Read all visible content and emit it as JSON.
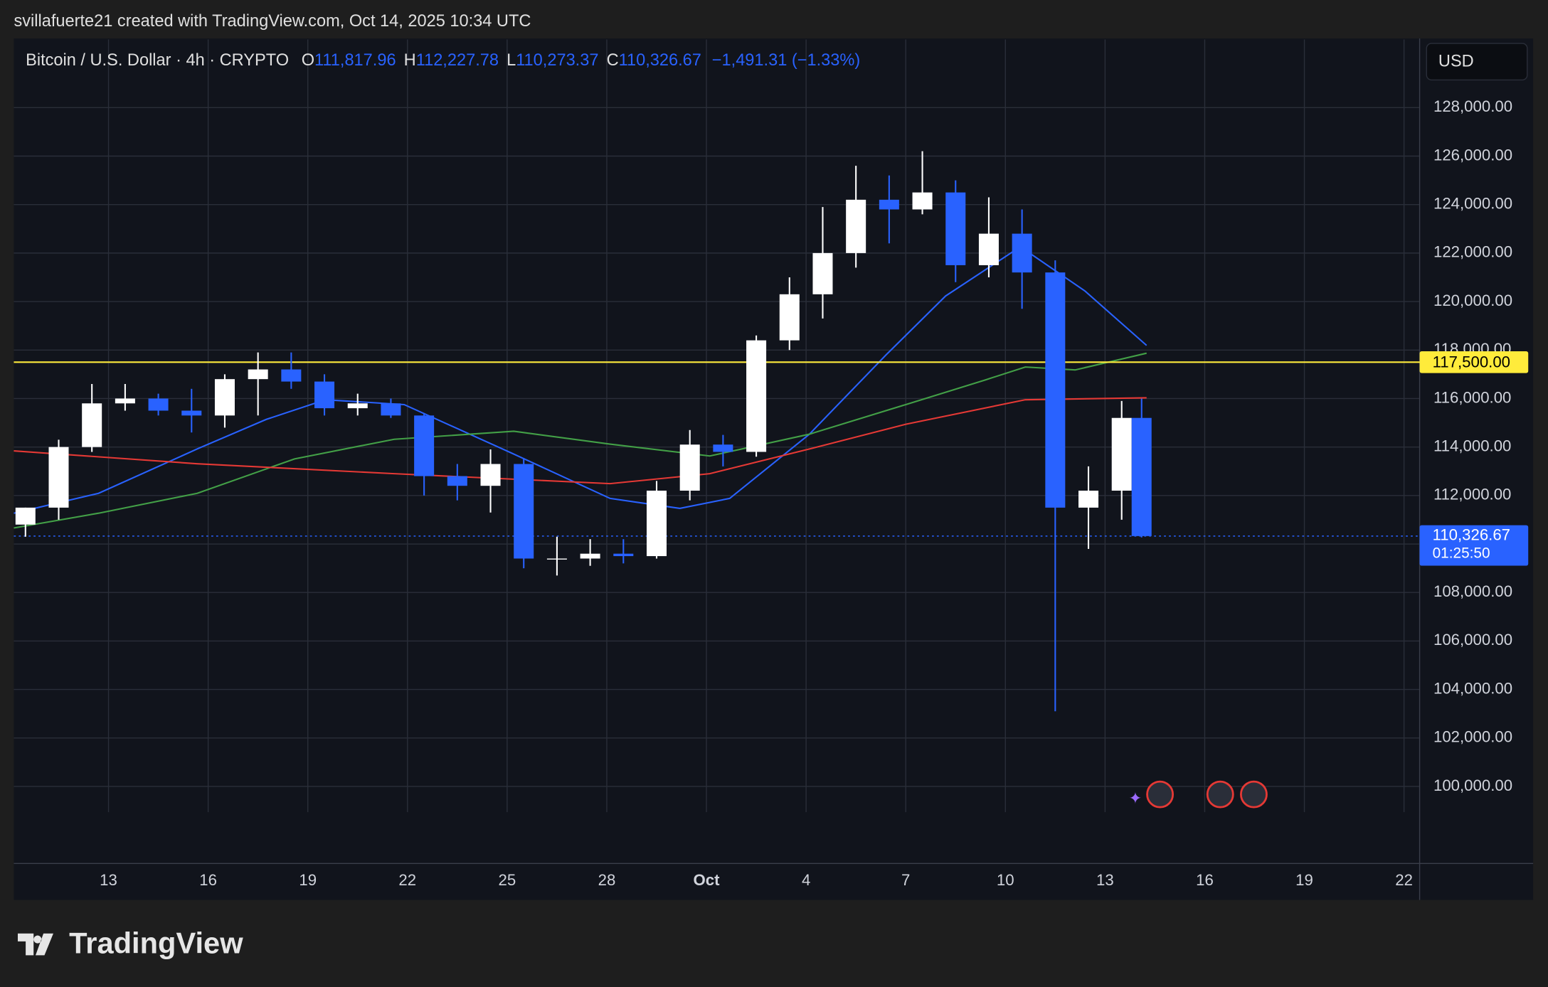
{
  "header": {
    "attribution": "svillafuerte21 created with TradingView.com, Oct 14, 2025 10:34 UTC",
    "symbol": "Bitcoin / U.S. Dollar · 4h · CRYPTO",
    "ohlc": [
      {
        "key": "O",
        "value": "111,817.96"
      },
      {
        "key": "H",
        "value": "112,227.78"
      },
      {
        "key": "L",
        "value": "110,273.37"
      },
      {
        "key": "C",
        "value": "110,326.67"
      }
    ],
    "change": "−1,491.31 (−1.33%)",
    "currency": "USD"
  },
  "chart_data": {
    "type": "candlestick",
    "up_color": "#ffffff",
    "down_color": "#2962ff",
    "grid": true,
    "x": [
      10.5,
      11.5,
      12.5,
      13.5,
      14.5,
      15.5,
      16.5,
      17.5,
      18.5,
      19.5,
      20.5,
      21.5,
      22.5,
      23.5,
      24.5,
      25.5,
      26.5,
      27.5,
      28.5,
      29.5,
      30.5,
      31.5,
      32.5,
      33.5,
      34.5,
      35.5,
      36.5,
      37.5,
      38.5,
      39.5,
      40.5,
      41.5,
      42.5,
      43.5,
      44.1
    ],
    "open": [
      110800,
      111500,
      114000,
      115800,
      116000,
      115500,
      115300,
      116800,
      117200,
      116700,
      115600,
      115800,
      115300,
      112800,
      112400,
      113300,
      109400,
      109400,
      109600,
      109500,
      112200,
      114100,
      113800,
      118400,
      120300,
      122000,
      124200,
      123800,
      124500,
      121500,
      122800,
      121200,
      111500,
      112200,
      115200
    ],
    "high": [
      111500,
      114300,
      116600,
      116600,
      116200,
      116400,
      117000,
      117900,
      117900,
      117000,
      116200,
      116000,
      115400,
      113300,
      113900,
      113500,
      110300,
      110200,
      110200,
      112600,
      114700,
      114500,
      118600,
      121000,
      123900,
      125600,
      125200,
      126200,
      125000,
      124300,
      123800,
      121700,
      113200,
      115900,
      116000
    ],
    "low": [
      110300,
      111000,
      113800,
      115500,
      115300,
      114600,
      114800,
      115300,
      116400,
      115300,
      115300,
      115200,
      112000,
      111800,
      111300,
      109000,
      108700,
      109100,
      109200,
      109400,
      111800,
      113200,
      113600,
      118000,
      119300,
      121400,
      122400,
      123600,
      120800,
      121000,
      119700,
      103100,
      109800,
      111000,
      110273.37
    ],
    "close": [
      111500,
      114000,
      115800,
      116000,
      115500,
      115300,
      116800,
      117200,
      116700,
      115600,
      115800,
      115300,
      112800,
      112400,
      113300,
      109400,
      109400,
      109600,
      109500,
      112200,
      114100,
      113800,
      118400,
      120300,
      122000,
      124200,
      123800,
      124500,
      121500,
      122800,
      121200,
      111500,
      112200,
      115200,
      110326.67
    ],
    "overlays": [
      {
        "color": "#2962ff",
        "x": [
          10.15,
          12.7,
          15.67,
          17.75,
          19.53,
          21.9,
          25.2,
          28.1,
          30.2,
          31.7,
          34.1,
          36.4,
          38.2,
          40.45,
          42.4,
          44.25
        ],
        "values": [
          111270,
          112090,
          113920,
          115140,
          115950,
          115750,
          113710,
          111880,
          111470,
          111880,
          114530,
          117790,
          120230,
          122260,
          120430,
          118190
        ]
      },
      {
        "color": "#43a047",
        "x": [
          10.15,
          12.7,
          15.67,
          18.6,
          21.6,
          25.2,
          28.1,
          31.1,
          34.1,
          37.0,
          39.4,
          40.6,
          42.1,
          44.25
        ],
        "values": [
          110660,
          111270,
          112090,
          113510,
          114320,
          114650,
          114120,
          113630,
          114530,
          115750,
          116770,
          117300,
          117180,
          117870
        ]
      },
      {
        "color": "#e53935",
        "x": [
          10.15,
          15.67,
          21.6,
          28.1,
          31.1,
          34.1,
          37.0,
          40.6,
          44.25
        ],
        "values": [
          113840,
          113310,
          112900,
          112490,
          112900,
          113920,
          114940,
          115950,
          116030
        ]
      }
    ],
    "hlines": [
      {
        "value": 117500,
        "label": "117,500.00",
        "color": "#ffeb3b"
      }
    ],
    "last_price": {
      "value": 110326.67,
      "label": "110,326.67",
      "countdown": "01:25:50",
      "color": "#2962ff"
    },
    "xlim": [
      10.15,
      52.47
    ],
    "xticks": [
      13,
      16,
      19,
      22,
      25,
      28,
      {
        "value": 31,
        "label": "Oct"
      },
      {
        "value": 34,
        "label": "4"
      },
      {
        "value": 37,
        "label": "7"
      },
      {
        "value": 40,
        "label": "10"
      },
      {
        "value": 43,
        "label": "13"
      },
      {
        "value": 46,
        "label": "16"
      },
      {
        "value": 49,
        "label": "19"
      },
      {
        "value": 52,
        "label": "22"
      }
    ],
    "ylim": [
      98940,
      130810
    ],
    "yticks": [
      {
        "value": 100000,
        "label": "100,000.00"
      },
      {
        "value": 102000,
        "label": "102,000.00"
      },
      {
        "value": 104000,
        "label": "104,000.00"
      },
      {
        "value": 106000,
        "label": "106,000.00"
      },
      {
        "value": 108000,
        "label": "108,000.00"
      },
      {
        "value": 110000,
        "label": "110,000.00"
      },
      {
        "value": 112000,
        "label": "112,000.00"
      },
      {
        "value": 114000,
        "label": "114,000.00"
      },
      {
        "value": 116000,
        "label": "116,000.00"
      },
      {
        "value": 118000,
        "label": "118,000.00"
      },
      {
        "value": 120000,
        "label": "120,000.00"
      },
      {
        "value": 122000,
        "label": "122,000.00"
      },
      {
        "value": 124000,
        "label": "124,000.00"
      },
      {
        "value": 126000,
        "label": "126,000.00"
      },
      {
        "value": 128000,
        "label": "128,000.00"
      }
    ]
  },
  "footer": {
    "logo": "TradingView"
  }
}
